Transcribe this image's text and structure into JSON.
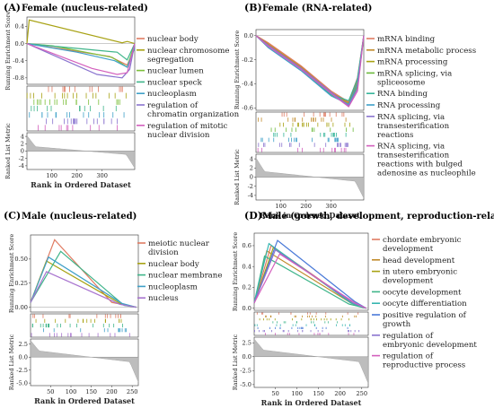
{
  "chart_data": [
    {
      "type": "line",
      "panel_label": "(A)",
      "title": "Female (nucleus-related)",
      "ylabel_top": "Running Enrichment Score",
      "ylabel_bottom": "Ranked List Metric",
      "xlabel": "Rank in Ordered Dataset",
      "xlim": [
        1,
        430
      ],
      "ylim": [
        -0.95,
        0.62
      ],
      "metric_lim": [
        -5,
        5
      ],
      "yticks": [
        "0.4",
        "0.0",
        "-0.4",
        "-0.8"
      ],
      "ytick_values": [
        0.4,
        0.0,
        -0.4,
        -0.8
      ],
      "metric_ticks": [
        "4",
        "2",
        "0",
        "-2",
        "-4"
      ],
      "metric_tick_values": [
        4,
        2,
        0,
        -2,
        -4
      ],
      "xticks": [
        "100",
        "200",
        "300"
      ],
      "xtick_values": [
        100,
        200,
        300
      ],
      "metric": {
        "start": 4.2,
        "end": -4.6,
        "shape": "convex"
      },
      "series": [
        {
          "name": "nuclear body",
          "color": "#e07b62",
          "points": [
            [
              1,
              0
            ],
            [
              330,
              -0.3
            ],
            [
              400,
              -0.5
            ],
            [
              430,
              -0.1
            ]
          ]
        },
        {
          "name": "nuclear chromosome segregation",
          "color": "#a8a214",
          "points": [
            [
              1,
              0
            ],
            [
              10,
              0.55
            ],
            [
              380,
              0.02
            ],
            [
              400,
              0.05
            ],
            [
              430,
              0
            ]
          ]
        },
        {
          "name": "nuclear lumen",
          "color": "#7cbf3a",
          "points": [
            [
              1,
              0
            ],
            [
              100,
              -0.05
            ],
            [
              340,
              -0.32
            ],
            [
              400,
              -0.55
            ],
            [
              430,
              0
            ]
          ]
        },
        {
          "name": "nuclear speck",
          "color": "#3fb58a",
          "points": [
            [
              1,
              0
            ],
            [
              360,
              -0.2
            ],
            [
              400,
              -0.38
            ],
            [
              430,
              0
            ]
          ]
        },
        {
          "name": "nucleoplasm",
          "color": "#3fa0c8",
          "points": [
            [
              1,
              0
            ],
            [
              200,
              -0.2
            ],
            [
              350,
              -0.4
            ],
            [
              400,
              -0.55
            ],
            [
              430,
              -0.1
            ]
          ]
        },
        {
          "name": "regulation of chromatin organization",
          "color": "#8a74cf",
          "points": [
            [
              1,
              0
            ],
            [
              280,
              -0.72
            ],
            [
              380,
              -0.8
            ],
            [
              410,
              -0.6
            ],
            [
              430,
              0
            ]
          ]
        },
        {
          "name": "regulation of mitotic nuclear division",
          "color": "#d35fbd",
          "points": [
            [
              1,
              0
            ],
            [
              260,
              -0.58
            ],
            [
              360,
              -0.72
            ],
            [
              400,
              -0.68
            ],
            [
              430,
              0
            ]
          ]
        }
      ]
    },
    {
      "type": "line",
      "panel_label": "(B)",
      "title": "Female (RNA-related)",
      "ylabel_top": "Running Enrichment Score",
      "ylabel_bottom": "Ranked List Metric",
      "xlabel": "Rank in Ordered Dataset",
      "xlim": [
        1,
        430
      ],
      "ylim": [
        -0.62,
        0.05
      ],
      "metric_lim": [
        -5,
        5
      ],
      "yticks": [
        "0.0",
        "-0.2",
        "-0.4",
        "-0.6"
      ],
      "ytick_values": [
        0.0,
        -0.2,
        -0.4,
        -0.6
      ],
      "metric_ticks": [
        "4",
        "2",
        "0",
        "-2",
        "-4"
      ],
      "metric_tick_values": [
        4,
        2,
        0,
        -2,
        -4
      ],
      "xticks": [
        "100",
        "200",
        "300"
      ],
      "xtick_values": [
        100,
        200,
        300
      ],
      "metric": {
        "start": 4.2,
        "end": -4.6,
        "shape": "convex"
      },
      "series": [
        {
          "name": "mRNA binding",
          "color": "#e07b62",
          "points": [
            [
              1,
              0
            ],
            [
              50,
              -0.06
            ],
            [
              180,
              -0.25
            ],
            [
              300,
              -0.46
            ],
            [
              370,
              -0.55
            ],
            [
              405,
              -0.35
            ],
            [
              430,
              0
            ]
          ]
        },
        {
          "name": "mRNA metabolic process",
          "color": "#c18a2a",
          "points": [
            [
              1,
              0
            ],
            [
              50,
              -0.07
            ],
            [
              180,
              -0.26
            ],
            [
              300,
              -0.47
            ],
            [
              370,
              -0.56
            ],
            [
              405,
              -0.38
            ],
            [
              430,
              0
            ]
          ]
        },
        {
          "name": "mRNA processing",
          "color": "#a8a214",
          "points": [
            [
              1,
              0
            ],
            [
              50,
              -0.08
            ],
            [
              180,
              -0.27
            ],
            [
              300,
              -0.48
            ],
            [
              370,
              -0.57
            ],
            [
              405,
              -0.4
            ],
            [
              430,
              0
            ]
          ]
        },
        {
          "name": "mRNA splicing, via spliceosome",
          "color": "#6cba3c",
          "points": [
            [
              1,
              0
            ],
            [
              50,
              -0.08
            ],
            [
              180,
              -0.28
            ],
            [
              300,
              -0.49
            ],
            [
              370,
              -0.58
            ],
            [
              405,
              -0.42
            ],
            [
              430,
              0
            ]
          ]
        },
        {
          "name": "RNA binding",
          "color": "#35b59a",
          "points": [
            [
              1,
              0
            ],
            [
              50,
              -0.09
            ],
            [
              180,
              -0.28
            ],
            [
              300,
              -0.49
            ],
            [
              370,
              -0.54
            ],
            [
              405,
              -0.36
            ],
            [
              430,
              0
            ]
          ]
        },
        {
          "name": "RNA processing",
          "color": "#3fa0c8",
          "points": [
            [
              1,
              0
            ],
            [
              50,
              -0.1
            ],
            [
              180,
              -0.29
            ],
            [
              300,
              -0.5
            ],
            [
              370,
              -0.57
            ],
            [
              405,
              -0.4
            ],
            [
              430,
              0
            ]
          ]
        },
        {
          "name": "RNA splicing, via transesterification reactions",
          "color": "#8a74cf",
          "points": [
            [
              1,
              0
            ],
            [
              50,
              -0.08
            ],
            [
              180,
              -0.27
            ],
            [
              300,
              -0.47
            ],
            [
              370,
              -0.58
            ],
            [
              405,
              -0.44
            ],
            [
              430,
              0
            ]
          ]
        },
        {
          "name": "RNA splicing, via transesterification reactions with bulged adenosine as nucleophile",
          "color": "#d35fbd",
          "points": [
            [
              1,
              0
            ],
            [
              50,
              -0.09
            ],
            [
              180,
              -0.28
            ],
            [
              300,
              -0.48
            ],
            [
              370,
              -0.59
            ],
            [
              405,
              -0.46
            ],
            [
              430,
              0
            ]
          ]
        }
      ]
    },
    {
      "type": "line",
      "panel_label": "(C)",
      "title": "Male (nucleus-related)",
      "ylabel_top": "Running Enrichment Score",
      "ylabel_bottom": "Ranked List Metric",
      "xlabel": "Rank in Ordered Dataset",
      "xlim": [
        1,
        265
      ],
      "ylim": [
        -0.05,
        0.75
      ],
      "metric_lim": [
        -5.5,
        3.5
      ],
      "yticks": [
        "0.50",
        "0.25",
        "0.00"
      ],
      "ytick_values": [
        0.5,
        0.25,
        0.0
      ],
      "metric_ticks": [
        "2.5",
        "0.0",
        "-2.5",
        "-5.0"
      ],
      "metric_tick_values": [
        2.5,
        0,
        -2.5,
        -5
      ],
      "xticks": [
        "50",
        "100",
        "150",
        "200",
        "250"
      ],
      "xtick_values": [
        50,
        100,
        150,
        200,
        250
      ],
      "metric": {
        "start": 3.2,
        "end": -4.8,
        "shape": "convex"
      },
      "series": [
        {
          "name": "meiotic nuclear division",
          "color": "#e07b62",
          "points": [
            [
              1,
              0.05
            ],
            [
              60,
              0.7
            ],
            [
              200,
              0.05
            ],
            [
              240,
              0.02
            ],
            [
              260,
              0
            ]
          ]
        },
        {
          "name": "nuclear body",
          "color": "#a8a214",
          "points": [
            [
              1,
              0.05
            ],
            [
              40,
              0.48
            ],
            [
              220,
              0.04
            ],
            [
              260,
              0
            ]
          ]
        },
        {
          "name": "nuclear membrane",
          "color": "#3fb58a",
          "points": [
            [
              1,
              0.05
            ],
            [
              75,
              0.58
            ],
            [
              230,
              0.02
            ],
            [
              260,
              0
            ]
          ]
        },
        {
          "name": "nucleoplasm",
          "color": "#3fa0c8",
          "points": [
            [
              1,
              0.05
            ],
            [
              45,
              0.52
            ],
            [
              225,
              0.04
            ],
            [
              260,
              0
            ]
          ]
        },
        {
          "name": "nucleus",
          "color": "#a874cf",
          "points": [
            [
              1,
              0.05
            ],
            [
              40,
              0.37
            ],
            [
              220,
              0.03
            ],
            [
              260,
              0
            ]
          ]
        }
      ]
    },
    {
      "type": "line",
      "panel_label": "(D)",
      "title": "Male (gorwth, development, reproduction-related)",
      "ylabel_top": "Running Enrichment Score",
      "ylabel_bottom": "Ranked List Metric",
      "xlabel": "Rank in Ordered Dataset",
      "xlim": [
        1,
        265
      ],
      "ylim": [
        -0.02,
        0.72
      ],
      "metric_lim": [
        -5.5,
        3.5
      ],
      "yticks": [
        "0.6",
        "0.4",
        "0.2",
        "0.0"
      ],
      "ytick_values": [
        0.6,
        0.4,
        0.2,
        0.0
      ],
      "metric_ticks": [
        "2.5",
        "0.0",
        "-2.5",
        "-5.0"
      ],
      "metric_tick_values": [
        2.5,
        0,
        -2.5,
        -5
      ],
      "xticks": [
        "50",
        "100",
        "150",
        "200",
        "250"
      ],
      "xtick_values": [
        50,
        100,
        150,
        200,
        250
      ],
      "metric": {
        "start": 3.2,
        "end": -4.8,
        "shape": "convex"
      },
      "series": [
        {
          "name": "chordate embryonic development",
          "color": "#e07b62",
          "points": [
            [
              1,
              0.05
            ],
            [
              40,
              0.6
            ],
            [
              230,
              0.05
            ],
            [
              260,
              0
            ]
          ]
        },
        {
          "name": "head development",
          "color": "#c18a2a",
          "points": [
            [
              1,
              0.05
            ],
            [
              30,
              0.55
            ],
            [
              225,
              0.05
            ],
            [
              260,
              0
            ]
          ]
        },
        {
          "name": "in utero embryonic development",
          "color": "#a8a214",
          "points": [
            [
              1,
              0.05
            ],
            [
              45,
              0.58
            ],
            [
              230,
              0.04
            ],
            [
              260,
              0
            ]
          ]
        },
        {
          "name": "oocyte development",
          "color": "#3fb58a",
          "points": [
            [
              1,
              0.05
            ],
            [
              25,
              0.5
            ],
            [
              220,
              0.04
            ],
            [
              260,
              0
            ]
          ]
        },
        {
          "name": "oocyte differentiation",
          "color": "#35b5b0",
          "points": [
            [
              1,
              0.05
            ],
            [
              35,
              0.62
            ],
            [
              225,
              0.05
            ],
            [
              260,
              0
            ]
          ]
        },
        {
          "name": "positive regulation of growth",
          "color": "#4a7ad8",
          "points": [
            [
              1,
              0.05
            ],
            [
              55,
              0.65
            ],
            [
              235,
              0.06
            ],
            [
              260,
              0
            ]
          ]
        },
        {
          "name": "regulation of embryonic development",
          "color": "#8a74cf",
          "points": [
            [
              1,
              0.05
            ],
            [
              50,
              0.56
            ],
            [
              230,
              0.05
            ],
            [
              260,
              0
            ]
          ]
        },
        {
          "name": "regulation of reproductive process",
          "color": "#d35fbd",
          "points": [
            [
              1,
              0.05
            ],
            [
              60,
              0.52
            ],
            [
              235,
              0.05
            ],
            [
              260,
              0
            ]
          ]
        }
      ]
    }
  ]
}
